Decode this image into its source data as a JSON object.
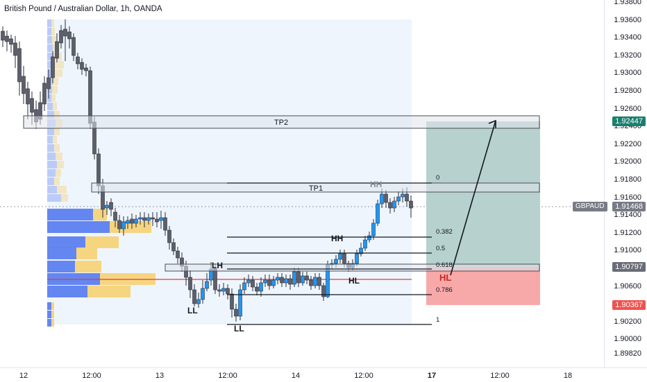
{
  "title": "British Pound / Australian Dollar, 1h, OANDA",
  "y_labels": [
    "1.93800",
    "1.93600",
    "1.93400",
    "1.93200",
    "1.93000",
    "1.92800",
    "1.92600",
    "1.92400",
    "1.92200",
    "1.92000",
    "1.91800",
    "1.91600",
    "1.91400",
    "1.91200",
    "1.91000",
    "1.90800",
    "1.90600",
    "1.90400",
    "1.90200",
    "1.90000",
    "1.89820"
  ],
  "x_labels": [
    {
      "text": "12",
      "bold": false
    },
    {
      "text": "12:00",
      "bold": false
    },
    {
      "text": "13",
      "bold": false
    },
    {
      "text": "12:00",
      "bold": false
    },
    {
      "text": "14",
      "bold": false
    },
    {
      "text": "12:00",
      "bold": false
    },
    {
      "text": "17",
      "bold": true
    },
    {
      "text": "12:00",
      "bold": false
    },
    {
      "text": "18",
      "bold": false
    }
  ],
  "tags": {
    "tp2_price": "1.92447",
    "current_symbol": "GBPAUD",
    "current_price": "1.91468",
    "entry_price": "1.90797",
    "stop_price": "1.90367"
  },
  "zones": {
    "tp1": "TP1",
    "tp2": "TP2"
  },
  "fib": [
    "0",
    "0.382",
    "0.5",
    "0.618",
    "0.786",
    "1"
  ],
  "structure": {
    "hh1": "HH",
    "hh2": "HH",
    "lh": "LH",
    "ll1": "LL",
    "ll2": "LL",
    "hl1": "HL",
    "hl2": "HL"
  },
  "colors": {
    "up": "#2196f3",
    "down": "#787b86",
    "target_zone": "#b2cfcb",
    "stop_zone": "#f7a3a3",
    "volume_blue": "#5b7ff0",
    "volume_yellow": "#f6d37a",
    "poc_line": "#e53935"
  }
}
